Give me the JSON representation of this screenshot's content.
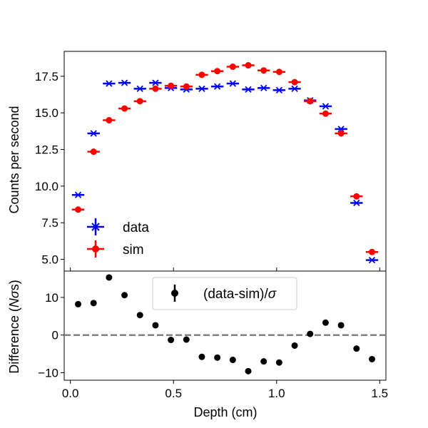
{
  "chart_data": [
    {
      "type": "scatter",
      "panel": "top",
      "ylabel": "Counts per second",
      "xlim": [
        -0.03,
        1.53
      ],
      "ylim": [
        4.2,
        19.2
      ],
      "yticks": [
        5.0,
        7.5,
        10.0,
        12.5,
        15.0,
        17.5
      ],
      "ytick_labels": [
        "5.0",
        "7.5",
        "10.0",
        "12.5",
        "15.0",
        "17.5"
      ],
      "legend": "lower-left",
      "x": [
        0.075,
        0.15,
        0.225,
        0.3,
        0.375,
        0.45,
        0.525,
        0.6,
        0.675,
        0.75,
        0.825,
        0.9,
        0.975,
        1.05,
        1.125,
        1.2,
        1.275,
        1.35,
        1.425,
        1.5
      ],
      "x_halfwidth": 0.03,
      "series": [
        {
          "name": "data",
          "marker": "x",
          "color": "#0000ff",
          "x_offset": -0.0375,
          "values": [
            9.4,
            13.6,
            17.0,
            17.05,
            16.65,
            17.05,
            16.7,
            16.6,
            16.65,
            16.8,
            17.0,
            16.6,
            16.7,
            16.55,
            16.65,
            15.85,
            15.45,
            13.9,
            8.85,
            4.95
          ]
        },
        {
          "name": "sim",
          "marker": "o",
          "color": "#ff0000",
          "x_offset": -0.0375,
          "values": [
            8.4,
            12.35,
            14.5,
            15.3,
            15.8,
            16.65,
            16.85,
            16.8,
            17.6,
            17.85,
            18.15,
            18.25,
            17.9,
            17.8,
            17.1,
            15.8,
            14.95,
            13.6,
            9.3,
            5.5
          ]
        }
      ]
    },
    {
      "type": "scatter",
      "panel": "bottom",
      "ylabel": "Difference (Nσs)",
      "xlabel": "Depth (cm)",
      "xlim": [
        -0.03,
        1.53
      ],
      "ylim": [
        -12,
        17
      ],
      "yticks": [
        -10,
        0,
        10
      ],
      "ytick_labels": [
        "−10",
        "0",
        "10"
      ],
      "xticks": [
        0.0,
        0.5,
        1.0,
        1.5
      ],
      "xtick_labels": [
        "0.0",
        "0.5",
        "1.0",
        "1.5"
      ],
      "reference_line": 0,
      "legend": "top-center",
      "series": [
        {
          "name": "(data-sim)/σ",
          "marker": "o",
          "color": "#000000",
          "x": [
            0.0375,
            0.1125,
            0.1875,
            0.2625,
            0.3375,
            0.4125,
            0.4875,
            0.5625,
            0.6375,
            0.7125,
            0.7875,
            0.8625,
            0.9375,
            1.0125,
            1.0875,
            1.1625,
            1.2375,
            1.3125,
            1.3875,
            1.4625
          ],
          "values": [
            8.2,
            8.5,
            15.3,
            10.6,
            5.3,
            2.6,
            -1.3,
            -1.2,
            -5.8,
            -6.0,
            -6.6,
            -9.6,
            -7.0,
            -7.3,
            -2.8,
            0.3,
            3.3,
            2.6,
            -3.6,
            -6.4
          ],
          "errors": [
            0.7,
            0.7,
            0.8,
            0.7,
            0.7,
            0.7,
            0.7,
            0.7,
            0.8,
            0.8,
            0.8,
            0.8,
            0.8,
            0.8,
            0.8,
            0.7,
            0.7,
            0.7,
            0.7,
            0.7
          ]
        }
      ]
    }
  ]
}
